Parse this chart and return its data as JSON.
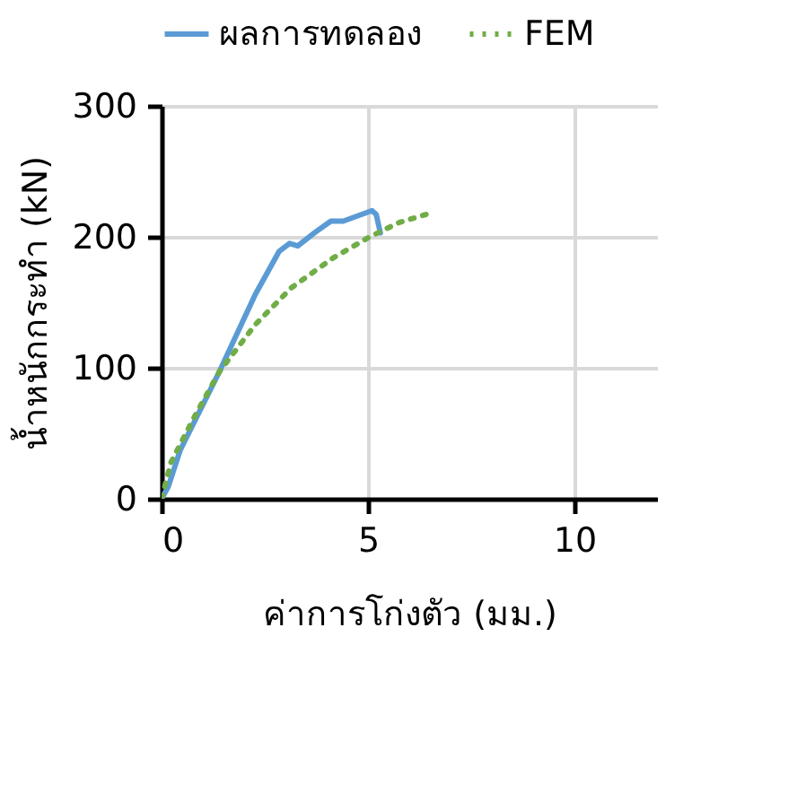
{
  "chart_data": {
    "type": "line",
    "xlabel": "ค่าการโก่งตัว (มม.)",
    "ylabel": "น้ำหนักกระทำ (kN)",
    "xlim": [
      0,
      12
    ],
    "ylim": [
      0,
      300
    ],
    "xticks": [
      0,
      5,
      10
    ],
    "yticks": [
      0,
      100,
      200,
      300
    ],
    "grid": true,
    "legend": "top",
    "series": [
      {
        "name": "ผลการทดลอง",
        "color": "#5b9bd5",
        "line_style": "solid",
        "x": [
          0,
          0.16,
          0.45,
          1.4,
          2.27,
          2.85,
          3.1,
          3.3,
          3.7,
          4.1,
          4.4,
          5.1,
          5.2,
          5.3
        ],
        "values": [
          0,
          9,
          37,
          97,
          156,
          189,
          195,
          193,
          203,
          212,
          212,
          220,
          217,
          203
        ]
      },
      {
        "name": "FEM",
        "color": "#70ad47",
        "line_style": "dotted",
        "x": [
          0,
          0.23,
          0.82,
          1.4,
          2.27,
          3.14,
          4.16,
          5.04,
          5.76,
          6.5
        ],
        "values": [
          0,
          28,
          64,
          97,
          133,
          161,
          184,
          200,
          211,
          218
        ]
      }
    ]
  }
}
